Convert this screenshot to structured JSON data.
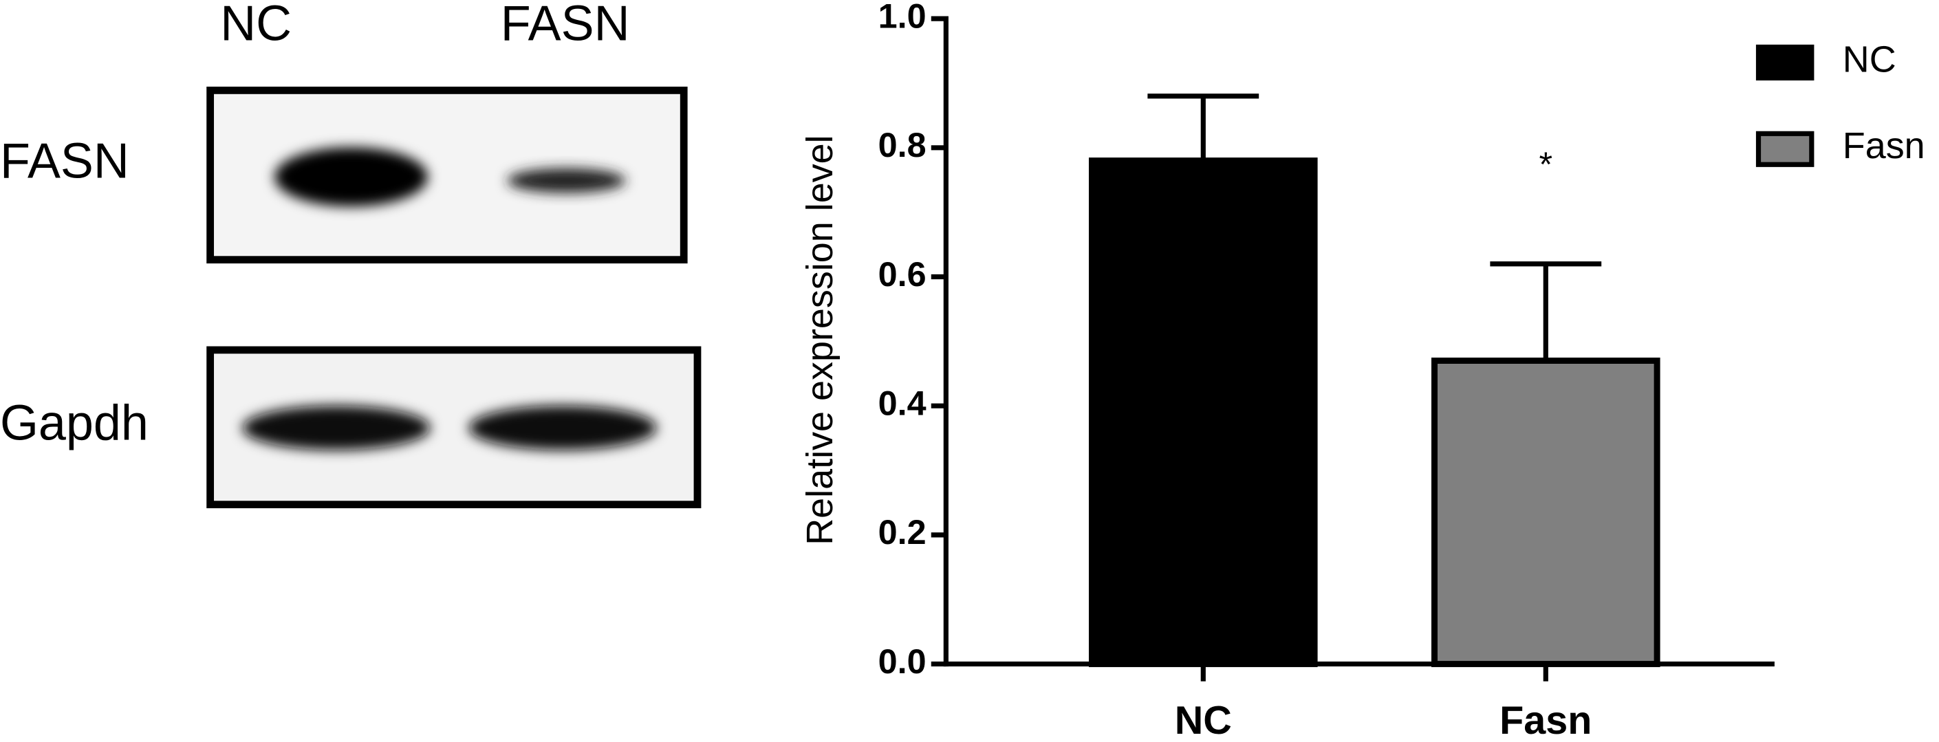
{
  "blot": {
    "lanes": [
      "NC",
      "FASN"
    ],
    "rows": [
      "FASN",
      "Gapdh"
    ]
  },
  "chart_data": {
    "type": "bar",
    "ylabel": "Relative expression level",
    "categories": [
      "NC",
      "Fasn"
    ],
    "values": [
      0.78,
      0.47
    ],
    "errors": [
      0.1,
      0.15
    ],
    "colors": [
      "#000000",
      "#808080"
    ],
    "legend": "top-right",
    "annotations": [
      "*"
    ],
    "ylim": [
      0,
      1
    ],
    "yticks": [
      {
        "value": 0,
        "label": "0.0"
      },
      0.2,
      0.4,
      0.6,
      0.8,
      {
        "value": 1,
        "label": "1.0"
      }
    ]
  }
}
